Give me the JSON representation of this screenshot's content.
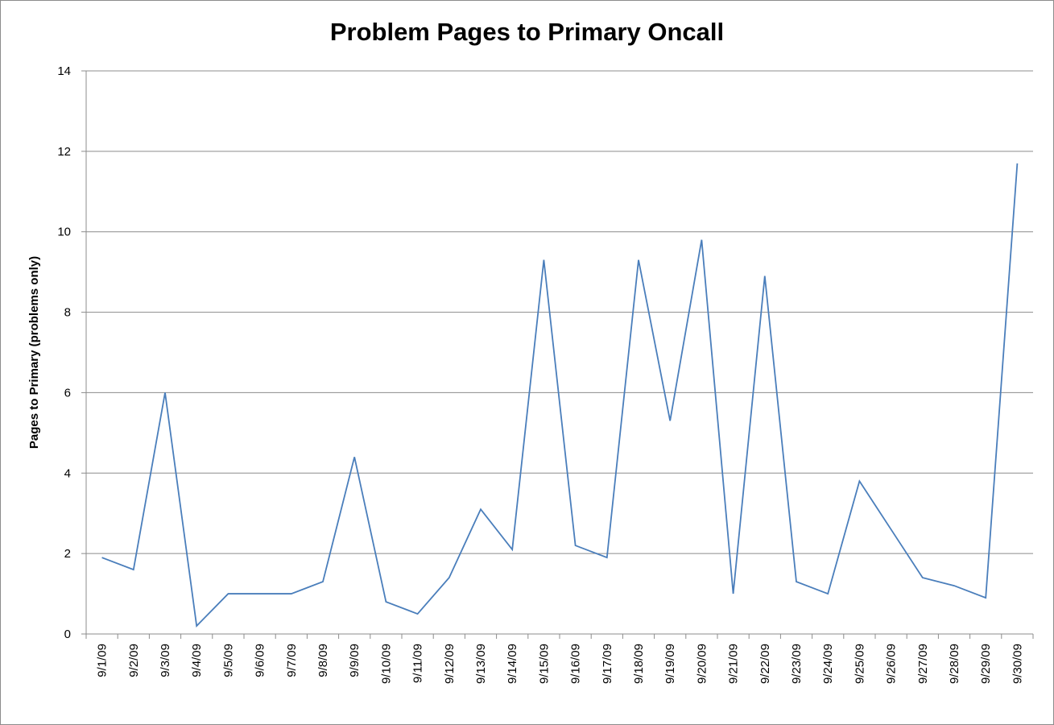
{
  "chart_data": {
    "type": "line",
    "title": "Problem Pages to Primary Oncall",
    "xlabel": "",
    "ylabel": "Pages to Primary (problems only)",
    "ylim": [
      0,
      14
    ],
    "yticks": [
      "0",
      "2",
      "4",
      "6",
      "8",
      "10",
      "12",
      "14"
    ],
    "grid": true,
    "legend": "none",
    "categories": [
      "9/1/09",
      "9/2/09",
      "9/3/09",
      "9/4/09",
      "9/5/09",
      "9/6/09",
      "9/7/09",
      "9/8/09",
      "9/9/09",
      "9/10/09",
      "9/11/09",
      "9/12/09",
      "9/13/09",
      "9/14/09",
      "9/15/09",
      "9/16/09",
      "9/17/09",
      "9/18/09",
      "9/19/09",
      "9/20/09",
      "9/21/09",
      "9/22/09",
      "9/23/09",
      "9/24/09",
      "9/25/09",
      "9/26/09",
      "9/27/09",
      "9/28/09",
      "9/29/09",
      "9/30/09"
    ],
    "series": [
      {
        "color": "#4a7ebb",
        "values": [
          1.9,
          1.6,
          6.0,
          0.2,
          1.0,
          1.0,
          1.0,
          1.3,
          4.4,
          0.8,
          0.5,
          1.4,
          3.1,
          2.1,
          9.3,
          2.2,
          1.9,
          9.3,
          5.3,
          9.8,
          1.0,
          8.9,
          1.3,
          1.0,
          3.8,
          2.6,
          1.4,
          1.2,
          0.9,
          11.7
        ]
      }
    ],
    "colors": {
      "grid": "#8c8c8c",
      "axis": "#8c8c8c"
    }
  }
}
